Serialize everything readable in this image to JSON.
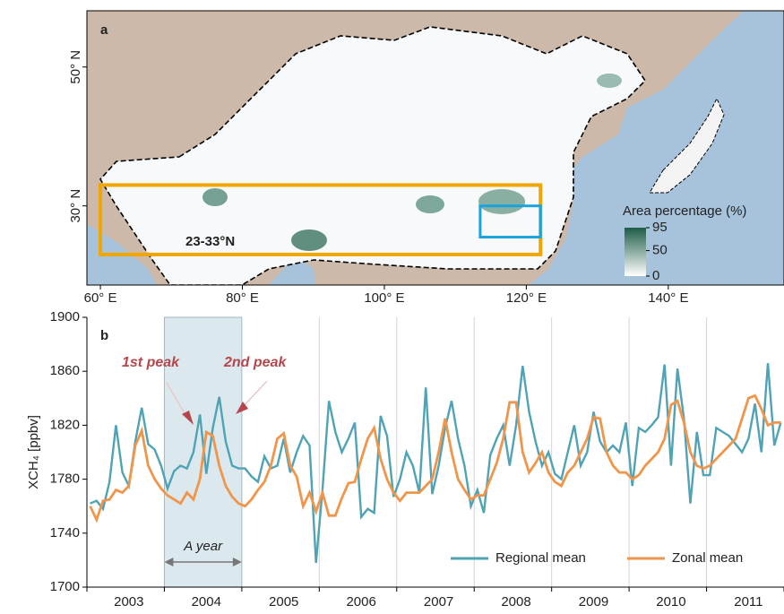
{
  "chart_data": [
    {
      "type": "map",
      "panel_label": "a",
      "xlim": [
        58.1,
        156.3
      ],
      "ylim": [
        18.6,
        58.1
      ],
      "xticks": [
        {
          "value": 60,
          "label": "60° E"
        },
        {
          "value": 80,
          "label": "80° E"
        },
        {
          "value": 100,
          "label": "100° E"
        },
        {
          "value": 120,
          "label": "120° E"
        },
        {
          "value": 140,
          "label": "140° E"
        }
      ],
      "yticks": [
        {
          "value": 30,
          "label": "30° N"
        },
        {
          "value": 50,
          "label": "50° N"
        }
      ],
      "region_box": {
        "label": "23-33°N",
        "color": "#f0a500",
        "lon": [
          60,
          122
        ],
        "lat": [
          23,
          33
        ]
      },
      "study_box": {
        "color": "#1aa3dc",
        "lon": [
          113.5,
          122
        ],
        "lat": [
          25.5,
          30
        ]
      },
      "colorbar": {
        "title": "Area percentage (%)",
        "ticks": [
          95,
          50,
          0
        ],
        "colors": [
          "#ffffff",
          "#1d5c48"
        ]
      }
    },
    {
      "type": "line",
      "panel_label": "b",
      "y_label": "XCH₄ [ppbv]",
      "categories": [
        null,
        null,
        null,
        null,
        null,
        null,
        "2003",
        null,
        null,
        null,
        null,
        null,
        null,
        null,
        null,
        null,
        null,
        null,
        "2004",
        null,
        null,
        null,
        null,
        null,
        null,
        null,
        null,
        null,
        null,
        null,
        "2005",
        null,
        null,
        null,
        null,
        null,
        null,
        null,
        null,
        null,
        null,
        null,
        "2006",
        null,
        null,
        null,
        null,
        null,
        null,
        null,
        null,
        null,
        null,
        null,
        "2007",
        null,
        null,
        null,
        null,
        null,
        null,
        null,
        null,
        null,
        null,
        null,
        "2008",
        null,
        null,
        null,
        null,
        null,
        null,
        null,
        null,
        null,
        null,
        null,
        "2009",
        null,
        null,
        null,
        null,
        null,
        null,
        null,
        null,
        null,
        null,
        null,
        "2010",
        null,
        null,
        null,
        null,
        null,
        null,
        null,
        null,
        null,
        null,
        null,
        "2011",
        null,
        null,
        null,
        null,
        null
      ],
      "ylim": [
        1700,
        1900
      ],
      "yticks": [
        1700,
        1740,
        1780,
        1820,
        1860,
        1900
      ],
      "legend": "lower right",
      "annotations": [
        "1st peak",
        "2nd peak",
        "A year"
      ],
      "series": [
        {
          "name": "Regional mean",
          "color": "#4fa3b5",
          "values": [
            1762,
            1764,
            1758,
            1778,
            1820,
            1785,
            1775,
            1808,
            1833,
            1806,
            1802,
            1790,
            1773,
            1786,
            1790,
            1788,
            1800,
            1828,
            1784,
            1818,
            1841,
            1808,
            1790,
            1788,
            1788,
            1782,
            1778,
            1797,
            1788,
            1790,
            1810,
            1785,
            1800,
            1812,
            1805,
            1718,
            1772,
            1838,
            1815,
            1800,
            1810,
            1822,
            1752,
            1758,
            1755,
            1827,
            1812,
            1767,
            1780,
            1800,
            1790,
            1770,
            1848,
            1769,
            1790,
            1818,
            1838,
            1810,
            1790,
            1760,
            1772,
            1755,
            1798,
            1810,
            1820,
            1790,
            1820,
            1864,
            1830,
            1808,
            1790,
            1800,
            1784,
            1780,
            1800,
            1820,
            1790,
            1800,
            1830,
            1808,
            1800,
            1805,
            1800,
            1822,
            1775,
            1818,
            1815,
            1820,
            1826,
            1865,
            1790,
            1862,
            1825,
            1762,
            1815,
            1783,
            1783,
            1818,
            1815,
            1812,
            1806,
            1800,
            1810,
            1836,
            1800,
            1866,
            1805,
            1822
          ]
        },
        {
          "name": "Zonal mean",
          "color": "#f0954a",
          "values": [
            1760,
            1750,
            1764,
            1765,
            1772,
            1770,
            1775,
            1805,
            1816,
            1790,
            1780,
            1773,
            1768,
            1765,
            1762,
            1770,
            1765,
            1780,
            1815,
            1812,
            1790,
            1775,
            1767,
            1762,
            1760,
            1765,
            1772,
            1778,
            1790,
            1810,
            1814,
            1790,
            1782,
            1760,
            1770,
            1756,
            1770,
            1753,
            1753,
            1766,
            1777,
            1778,
            1795,
            1810,
            1818,
            1795,
            1780,
            1770,
            1764,
            1770,
            1770,
            1770,
            1775,
            1780,
            1800,
            1825,
            1800,
            1780,
            1772,
            1765,
            1768,
            1768,
            1780,
            1792,
            1810,
            1837,
            1837,
            1800,
            1785,
            1792,
            1800,
            1785,
            1778,
            1775,
            1785,
            1790,
            1800,
            1810,
            1826,
            1825,
            1800,
            1790,
            1785,
            1785,
            1780,
            1783,
            1790,
            1795,
            1800,
            1810,
            1835,
            1838,
            1822,
            1800,
            1790,
            1788,
            1790,
            1795,
            1800,
            1805,
            1810,
            1825,
            1840,
            1842,
            1832,
            1820,
            1822,
            1822
          ]
        }
      ]
    }
  ]
}
